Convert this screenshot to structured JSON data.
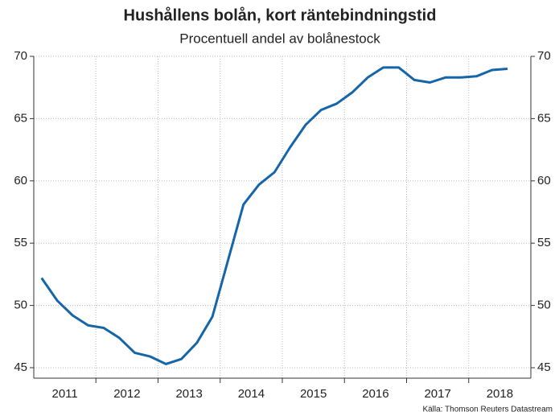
{
  "chart_data": {
    "type": "line",
    "title": "Hushållens bolån, kort räntebindningstid",
    "subtitle": "Procentuell andel av bolånestock",
    "source": "Källa: Thomson Reuters Datastream",
    "x": [
      2011.125,
      2011.375,
      2011.625,
      2011.875,
      2012.125,
      2012.375,
      2012.625,
      2012.875,
      2013.125,
      2013.375,
      2013.625,
      2013.875,
      2014.125,
      2014.375,
      2014.625,
      2014.875,
      2015.125,
      2015.375,
      2015.625,
      2015.875,
      2016.125,
      2016.375,
      2016.625,
      2016.875,
      2017.125,
      2017.375,
      2017.625,
      2017.875,
      2018.125,
      2018.375,
      2018.625
    ],
    "series": [
      {
        "color": "#1665a8",
        "values": [
          52.2,
          50.4,
          49.2,
          48.4,
          48.2,
          47.4,
          46.2,
          45.9,
          45.3,
          45.7,
          47.0,
          49.1,
          53.6,
          58.1,
          59.7,
          60.7,
          62.7,
          64.5,
          65.7,
          66.2,
          67.1,
          68.3,
          69.1,
          69.1,
          68.1,
          67.9,
          68.3,
          68.3,
          68.4,
          68.9,
          69.0
        ]
      }
    ],
    "xlim": [
      2011,
      2019
    ],
    "xticks": [
      {
        "value": 2011.5,
        "label": "2011"
      },
      {
        "value": 2012.5,
        "label": "2012"
      },
      {
        "value": 2013.5,
        "label": "2013"
      },
      {
        "value": 2014.5,
        "label": "2014"
      },
      {
        "value": 2015.5,
        "label": "2015"
      },
      {
        "value": 2016.5,
        "label": "2016"
      },
      {
        "value": 2017.5,
        "label": "2017"
      },
      {
        "value": 2018.5,
        "label": "2018"
      }
    ],
    "ylim": [
      45,
      70
    ],
    "yticks": [
      45,
      50,
      55,
      60,
      65,
      70
    ],
    "grid": true
  }
}
